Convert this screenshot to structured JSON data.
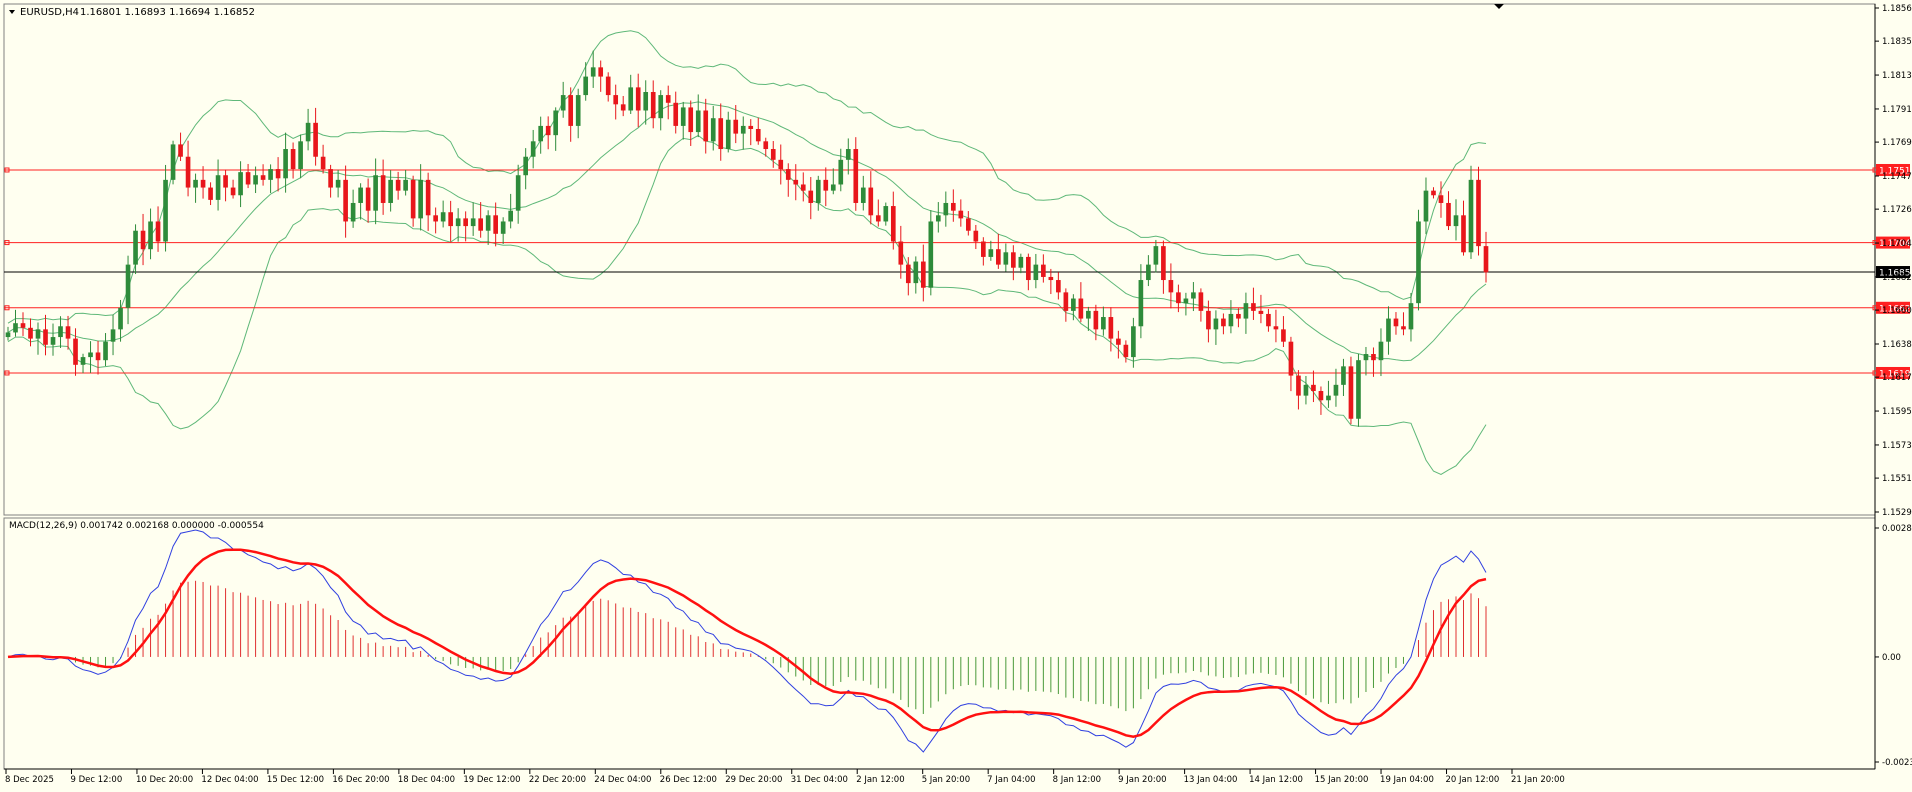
{
  "header": {
    "symbol_label": "EURUSD,H4",
    "ohlc_label": "1.16801 1.16893 1.16694 1.16852"
  },
  "macd": {
    "label": "MACD(12,26,9) 0.001742 0.002168 0.000000 -0.000554"
  },
  "colors": {
    "background": "#fffff0",
    "bull": "#2e8b3a",
    "bear": "#e8161b",
    "bands": "#5fb879",
    "level_line": "#ff2020",
    "current_line": "#000000",
    "macd_line": "#3040e0",
    "signal_line": "#ff1010",
    "hist_pos": "#e03030",
    "hist_neg": "#4a9a3a"
  },
  "chart_data": [
    {
      "type": "candlestick",
      "symbol": "EURUSD",
      "timeframe": "H4",
      "ylim": [
        1.15295,
        1.18565
      ],
      "y_ticks": [
        "1.18565",
        "1.18350",
        "1.18130",
        "1.17910",
        "1.17695",
        "1.17475",
        "1.17260",
        "1.17040",
        "1.16820",
        "1.16605",
        "1.16385",
        "1.16170",
        "1.15950",
        "1.15730",
        "1.15515",
        "1.15295"
      ],
      "x_ticks": [
        "8 Dec 2025",
        "9 Dec 12:00",
        "10 Dec 20:00",
        "12 Dec 04:00",
        "15 Dec 12:00",
        "16 Dec 20:00",
        "18 Dec 04:00",
        "19 Dec 12:00",
        "22 Dec 20:00",
        "24 Dec 04:00",
        "26 Dec 12:00",
        "29 Dec 20:00",
        "31 Dec 04:00",
        "2 Jan 12:00",
        "5 Jan 20:00",
        "7 Jan 04:00",
        "8 Jan 12:00",
        "9 Jan 20:00",
        "13 Jan 04:00",
        "14 Jan 12:00",
        "15 Jan 20:00",
        "19 Jan 04:00",
        "20 Jan 12:00",
        "21 Jan 20:00"
      ],
      "horizontal_levels": [
        {
          "value": 1.17514,
          "label": "1.17514"
        },
        {
          "value": 1.17043,
          "label": "1.17043"
        },
        {
          "value": 1.1662,
          "label": "1.16620"
        },
        {
          "value": 1.16197,
          "label": "1.16197"
        }
      ],
      "current_price": {
        "value": 1.16852,
        "label": "1.16852"
      },
      "closes": [
        1.1646,
        1.1652,
        1.1649,
        1.1642,
        1.1648,
        1.1638,
        1.1643,
        1.165,
        1.1642,
        1.1625,
        1.163,
        1.1633,
        1.1628,
        1.164,
        1.1648,
        1.1662,
        1.169,
        1.1712,
        1.17,
        1.1718,
        1.1705,
        1.1745,
        1.1768,
        1.176,
        1.174,
        1.1745,
        1.174,
        1.1732,
        1.1748,
        1.174,
        1.1735,
        1.175,
        1.1742,
        1.1748,
        1.1745,
        1.1752,
        1.1746,
        1.1765,
        1.1752,
        1.177,
        1.1782,
        1.176,
        1.1752,
        1.174,
        1.1745,
        1.1718,
        1.173,
        1.174,
        1.1725,
        1.1748,
        1.173,
        1.1745,
        1.1738,
        1.1745,
        1.172,
        1.1745,
        1.1722,
        1.1718,
        1.1724,
        1.1715,
        1.172,
        1.1715,
        1.172,
        1.1712,
        1.1722,
        1.171,
        1.1718,
        1.1725,
        1.1748,
        1.176,
        1.177,
        1.178,
        1.1774,
        1.179,
        1.18,
        1.178,
        1.18,
        1.1812,
        1.1818,
        1.1812,
        1.18,
        1.1794,
        1.179,
        1.1805,
        1.179,
        1.1802,
        1.1785,
        1.18,
        1.1795,
        1.178,
        1.1792,
        1.1776,
        1.179,
        1.177,
        1.1785,
        1.1765,
        1.1784,
        1.1775,
        1.178,
        1.1778,
        1.177,
        1.1765,
        1.1758,
        1.1752,
        1.1745,
        1.1742,
        1.1738,
        1.173,
        1.1745,
        1.1738,
        1.1742,
        1.1758,
        1.1765,
        1.173,
        1.174,
        1.1722,
        1.1718,
        1.1728,
        1.1705,
        1.169,
        1.1678,
        1.1692,
        1.1675,
        1.1718,
        1.1722,
        1.173,
        1.1725,
        1.172,
        1.1712,
        1.1705,
        1.1695,
        1.17,
        1.169,
        1.1698,
        1.1688,
        1.1695,
        1.168,
        1.169,
        1.1682,
        1.168,
        1.1672,
        1.166,
        1.1668,
        1.1655,
        1.166,
        1.1648,
        1.1656,
        1.1642,
        1.1638,
        1.163,
        1.165,
        1.168,
        1.169,
        1.1702,
        1.168,
        1.1672,
        1.1665,
        1.1668,
        1.1672,
        1.166,
        1.1648,
        1.1655,
        1.165,
        1.1658,
        1.1655,
        1.1665,
        1.166,
        1.1658,
        1.165,
        1.1648,
        1.164,
        1.1618,
        1.1605,
        1.1612,
        1.1608,
        1.1602,
        1.1605,
        1.1612,
        1.1624,
        1.159,
        1.1628,
        1.1632,
        1.1628,
        1.164,
        1.1655,
        1.165,
        1.1648,
        1.1665,
        1.1718,
        1.1738,
        1.1735,
        1.173,
        1.1715,
        1.1722,
        1.1698,
        1.1745,
        1.1702,
        1.1685
      ]
    },
    {
      "type": "macd",
      "params": "12,26,9",
      "macd_value": 0.001742,
      "signal_value": 0.002168,
      "ylim": [
        -0.00233,
        0.00286
      ],
      "y_ticks": [
        "0.00286",
        "0.00",
        "-0.00233"
      ]
    }
  ]
}
